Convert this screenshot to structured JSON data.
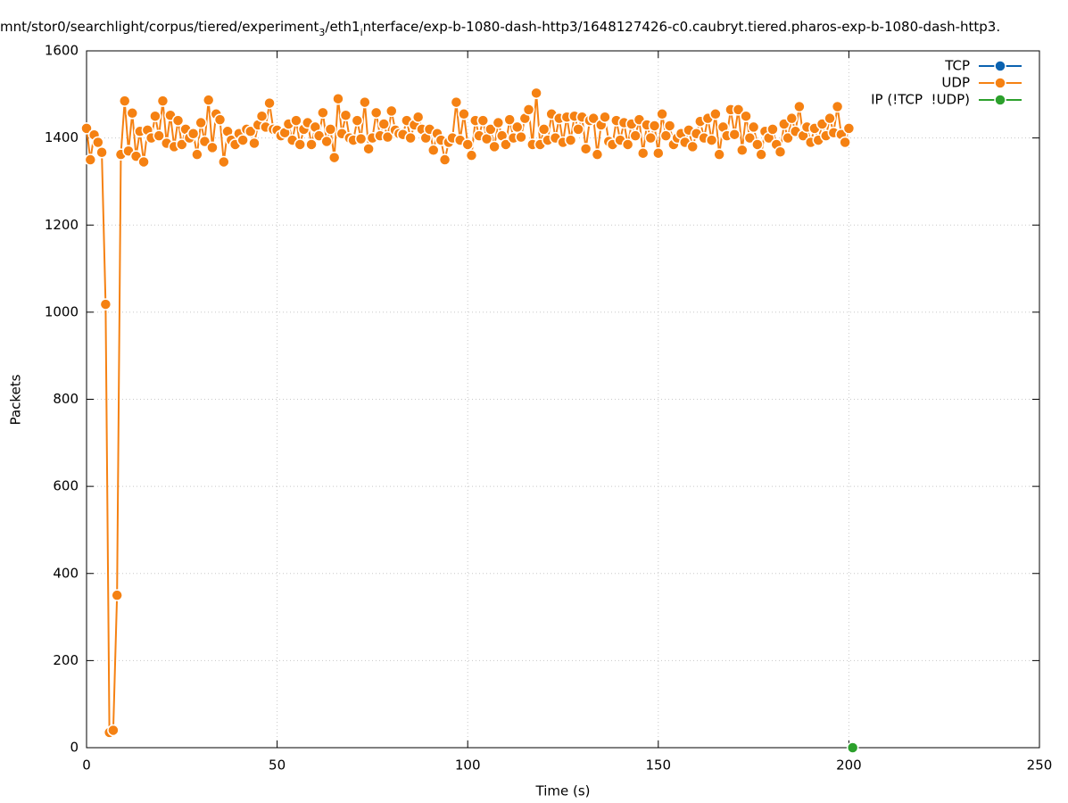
{
  "chart_data": {
    "type": "line",
    "title": [
      "mnt/stor0/searchlight/corpus/tiered/experiment",
      "3",
      "/eth1",
      "i",
      "nterface/exp-b-1080-dash-http3/1648127426-c0.caubryt.tiered.pharos-exp-b-1080-dash-http3."
    ],
    "x_label": "Time (s)",
    "y_label": "Packets",
    "xlim": [
      0,
      250
    ],
    "xticks": [
      0,
      50,
      100,
      150,
      200,
      250
    ],
    "ylim": [
      0,
      1600
    ],
    "yticks": [
      0,
      200,
      400,
      600,
      800,
      1000,
      1200,
      1400,
      1600
    ],
    "grid": true,
    "legend": "top-right",
    "series": [
      {
        "name": "TCP",
        "color": "#0b62b0",
        "x": [],
        "values": []
      },
      {
        "name": "UDP",
        "color": "#f58112",
        "x": [
          0,
          1,
          2,
          3,
          4,
          5,
          6,
          7,
          8,
          9,
          10,
          11,
          12,
          13,
          14,
          15,
          16,
          17,
          18,
          19,
          20,
          21,
          22,
          23,
          24,
          25,
          26,
          27,
          28,
          29,
          30,
          31,
          32,
          33,
          34,
          35,
          36,
          37,
          38,
          39,
          40,
          41,
          42,
          43,
          44,
          45,
          46,
          47,
          48,
          49,
          50,
          51,
          52,
          53,
          54,
          55,
          56,
          57,
          58,
          59,
          60,
          61,
          62,
          63,
          64,
          65,
          66,
          67,
          68,
          69,
          70,
          71,
          72,
          73,
          74,
          75,
          76,
          77,
          78,
          79,
          80,
          81,
          82,
          83,
          84,
          85,
          86,
          87,
          88,
          89,
          90,
          91,
          92,
          93,
          94,
          95,
          96,
          97,
          98,
          99,
          100,
          101,
          102,
          103,
          104,
          105,
          106,
          107,
          108,
          109,
          110,
          111,
          112,
          113,
          114,
          115,
          116,
          117,
          118,
          119,
          120,
          121,
          122,
          123,
          124,
          125,
          126,
          127,
          128,
          129,
          130,
          131,
          132,
          133,
          134,
          135,
          136,
          137,
          138,
          139,
          140,
          141,
          142,
          143,
          144,
          145,
          146,
          147,
          148,
          149,
          150,
          151,
          152,
          153,
          154,
          155,
          156,
          157,
          158,
          159,
          160,
          161,
          162,
          163,
          164,
          165,
          166,
          167,
          168,
          169,
          170,
          171,
          172,
          173,
          174,
          175,
          176,
          177,
          178,
          179,
          180,
          181,
          182,
          183,
          184,
          185,
          186,
          187,
          188,
          189,
          190,
          191,
          192,
          193,
          194,
          195,
          196,
          197,
          198,
          199,
          200
        ],
        "values": [
          1422,
          1350,
          1407,
          1390,
          1367,
          1018,
          35,
          40,
          350,
          1362,
          1485,
          1370,
          1457,
          1358,
          1415,
          1345,
          1418,
          1400,
          1450,
          1405,
          1485,
          1388,
          1452,
          1380,
          1440,
          1385,
          1420,
          1400,
          1410,
          1362,
          1435,
          1392,
          1487,
          1378,
          1455,
          1442,
          1345,
          1415,
          1395,
          1385,
          1410,
          1395,
          1420,
          1415,
          1388,
          1430,
          1450,
          1425,
          1480,
          1420,
          1418,
          1405,
          1412,
          1432,
          1395,
          1440,
          1385,
          1420,
          1435,
          1385,
          1425,
          1405,
          1458,
          1392,
          1420,
          1355,
          1490,
          1410,
          1452,
          1400,
          1395,
          1440,
          1398,
          1482,
          1375,
          1400,
          1458,
          1405,
          1432,
          1402,
          1462,
          1418,
          1410,
          1408,
          1440,
          1400,
          1430,
          1448,
          1420,
          1400,
          1420,
          1372,
          1410,
          1395,
          1350,
          1390,
          1400,
          1482,
          1395,
          1455,
          1385,
          1360,
          1440,
          1405,
          1440,
          1398,
          1420,
          1380,
          1435,
          1405,
          1385,
          1442,
          1400,
          1425,
          1402,
          1445,
          1465,
          1385,
          1503,
          1385,
          1420,
          1395,
          1455,
          1400,
          1445,
          1390,
          1448,
          1395,
          1450,
          1420,
          1448,
          1375,
          1440,
          1445,
          1362,
          1430,
          1448,
          1392,
          1385,
          1440,
          1395,
          1435,
          1385,
          1432,
          1405,
          1442,
          1365,
          1430,
          1400,
          1428,
          1365,
          1455,
          1405,
          1428,
          1385,
          1400,
          1410,
          1390,
          1418,
          1380,
          1410,
          1438,
          1400,
          1445,
          1395,
          1455,
          1362,
          1425,
          1405,
          1465,
          1408,
          1465,
          1372,
          1450,
          1400,
          1425,
          1385,
          1362,
          1415,
          1400,
          1420,
          1385,
          1368,
          1432,
          1400,
          1445,
          1415,
          1472,
          1405,
          1425,
          1390,
          1422,
          1395,
          1432,
          1405,
          1445,
          1412,
          1472,
          1408,
          1390,
          1422
        ]
      },
      {
        "name": "IP (!TCP  !UDP)",
        "color": "#2ca02c",
        "x": [
          201
        ],
        "values": [
          0
        ]
      }
    ]
  }
}
